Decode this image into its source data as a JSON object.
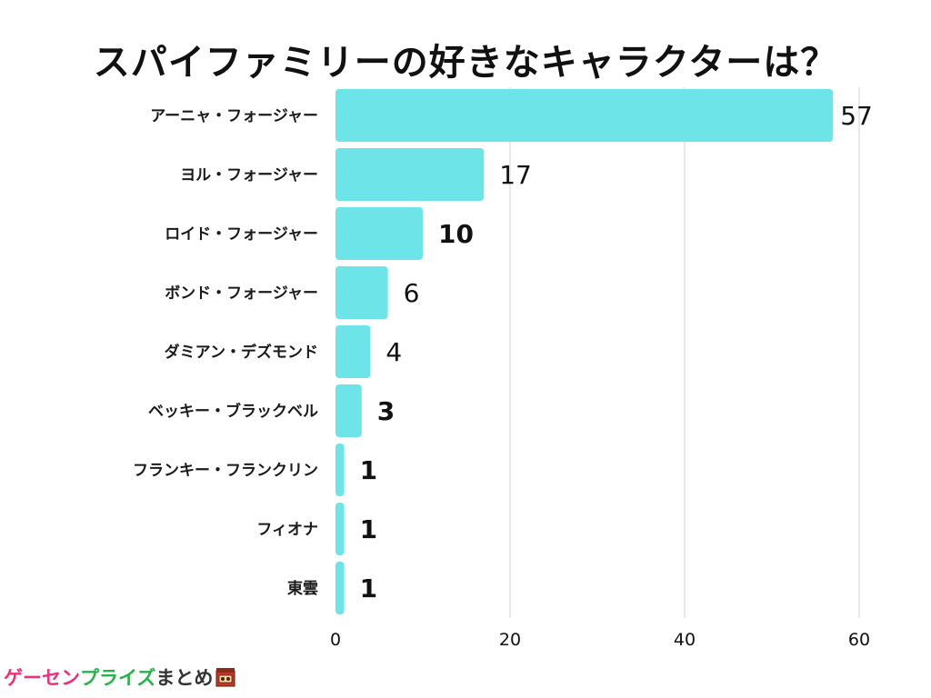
{
  "chart_data": {
    "type": "bar",
    "orientation": "horizontal",
    "title": "スパイファミリーの好きなキャラクターは？",
    "categories": [
      "アーニャ・フォージャー",
      "ヨル・フォージャー",
      "ロイド・フォージャー",
      "ボンド・フォージャー",
      "ダミアン・デズモンド",
      "ベッキー・ブラックベル",
      "フランキー・フランクリン",
      "フィオナ",
      "東雲"
    ],
    "values": [
      57,
      17,
      10,
      6,
      4,
      3,
      1,
      1,
      1
    ],
    "value_labels": [
      "57",
      "17",
      "10",
      "6",
      "4",
      "3",
      "1",
      "1",
      "1"
    ],
    "xlim": [
      0,
      60
    ],
    "xticks": [
      0,
      20,
      40,
      60
    ],
    "grid": true,
    "bar_color": "#6ce4e8"
  },
  "footer": {
    "logo_part1": "ゲーセン",
    "logo_part2": "プライズ",
    "logo_part3": "まとめ",
    "icon": "shop-icon"
  },
  "colors": {
    "grid": "#d0d0d0",
    "logo_pink": "#ef2f7a",
    "logo_green": "#27b24a"
  }
}
